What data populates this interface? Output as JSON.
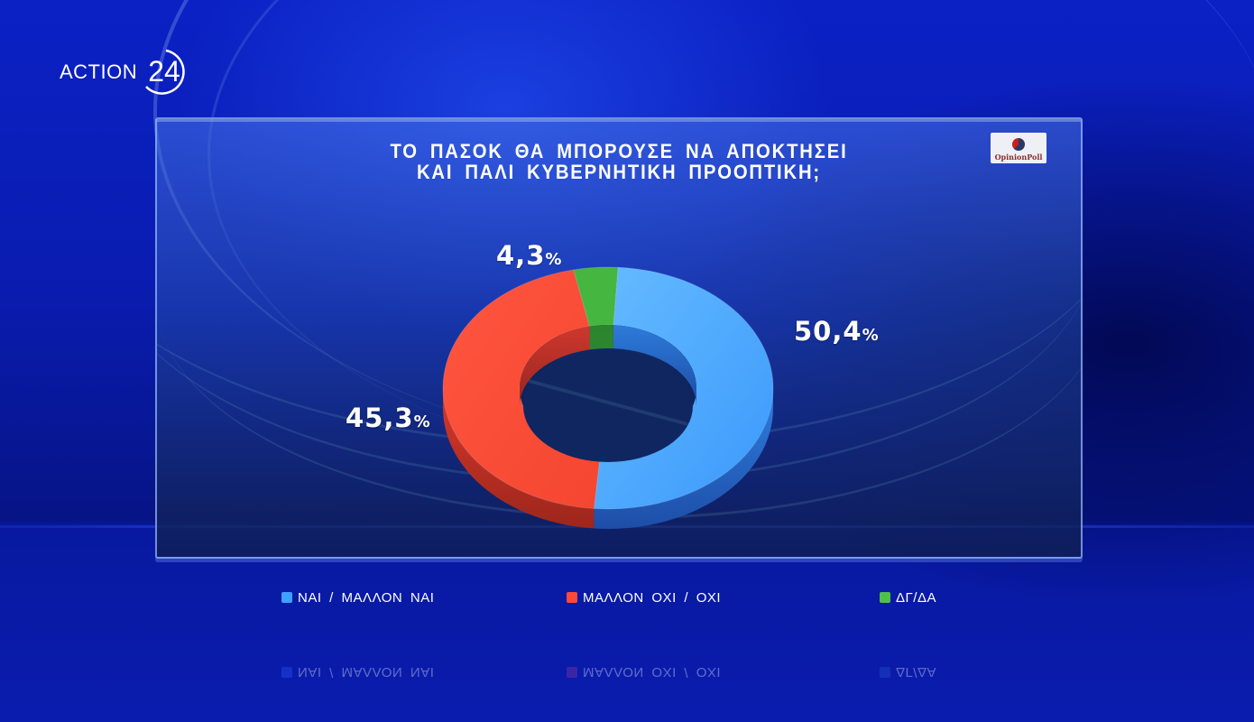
{
  "broadcaster": {
    "name": "ACTION",
    "number": "24"
  },
  "poll_source": {
    "name": "OpinionPoll"
  },
  "title": {
    "line1": "ΤΟ ΠΑΣΟΚ ΘΑ ΜΠΟΡΟΥΣΕ ΝΑ ΑΠΟΚΤΗΣΕΙ",
    "line2": "ΚΑΙ ΠΑΛΙ ΚΥΒΕΡΝΗΤΙΚΗ ΠΡΟΟΠΤΙΚΗ;"
  },
  "labels": {
    "yes": {
      "number": "50,4",
      "pct": "%"
    },
    "no": {
      "number": "45,3",
      "pct": "%"
    },
    "dk": {
      "number": "4,3",
      "pct": "%"
    }
  },
  "legend": [
    {
      "label": "ΝΑΙ / ΜΑΛΛΟΝ ΝΑΙ",
      "color": "#3fa0ff"
    },
    {
      "label": "ΜΑΛΛΟΝ ΟΧΙ / ΟΧΙ",
      "color": "#fa4a3a"
    },
    {
      "label": "ΔΓ/ΔΑ",
      "color": "#4fbf4a"
    }
  ],
  "colors": {
    "yes": "#44a4ff",
    "no": "#fb4b38",
    "dk": "#45b63f",
    "background": "#0a1cb0"
  },
  "chart_data": {
    "type": "pie",
    "subtype": "donut-3d",
    "title": "ΤΟ ΠΑΣΟΚ ΘΑ ΜΠΟΡΟΥΣΕ ΝΑ ΑΠΟΚΤΗΣΕΙ ΚΑΙ ΠΑΛΙ ΚΥΒΕΡΝΗΤΙΚΗ ΠΡΟΟΠΤΙΚΗ;",
    "categories": [
      "ΝΑΙ / ΜΑΛΛΟΝ ΝΑΙ",
      "ΜΑΛΛΟΝ ΟΧΙ / ΟΧΙ",
      "ΔΓ/ΔΑ"
    ],
    "values": [
      50.4,
      45.3,
      4.3
    ],
    "unit": "%",
    "colors": [
      "#44a4ff",
      "#fb4b38",
      "#45b63f"
    ],
    "legend_position": "bottom",
    "source": "OpinionPoll"
  }
}
